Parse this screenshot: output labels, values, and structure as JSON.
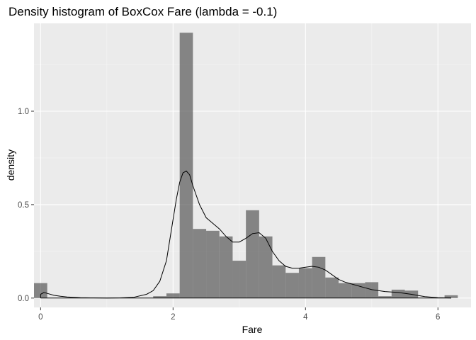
{
  "chart_data": {
    "type": "histogram",
    "title": "Density histogram of BoxCox Fare (lambda = -0.1)",
    "xlabel": "Fare",
    "ylabel": "density",
    "xlim": [
      -0.1,
      6.5
    ],
    "ylim": [
      -0.05,
      1.47
    ],
    "x_ticks": [
      0,
      2,
      4,
      6
    ],
    "x_tick_labels": [
      "0",
      "2",
      "4",
      "6"
    ],
    "y_ticks": [
      0.0,
      0.5,
      1.0
    ],
    "y_tick_labels": [
      "0.0",
      "0.5",
      "1.0"
    ],
    "grid": true,
    "theme": {
      "panel_background": "#ebebeb",
      "grid_major": "#ffffff",
      "grid_minor": "#f5f5f5",
      "bar_fill": "#595959",
      "bar_opacity": 0.7,
      "density_line": "#000000"
    },
    "bins": [
      {
        "x0": -0.1,
        "x1": 0.1,
        "density": 0.08
      },
      {
        "x0": 1.7,
        "x1": 1.9,
        "density": 0.01
      },
      {
        "x0": 1.9,
        "x1": 2.1,
        "density": 0.025
      },
      {
        "x0": 2.1,
        "x1": 2.3,
        "density": 1.42
      },
      {
        "x0": 2.3,
        "x1": 2.5,
        "density": 0.37
      },
      {
        "x0": 2.5,
        "x1": 2.7,
        "density": 0.36
      },
      {
        "x0": 2.7,
        "x1": 2.9,
        "density": 0.33
      },
      {
        "x0": 2.9,
        "x1": 3.1,
        "density": 0.2
      },
      {
        "x0": 3.1,
        "x1": 3.3,
        "density": 0.47
      },
      {
        "x0": 3.3,
        "x1": 3.5,
        "density": 0.33
      },
      {
        "x0": 3.5,
        "x1": 3.7,
        "density": 0.175
      },
      {
        "x0": 3.7,
        "x1": 3.9,
        "density": 0.135
      },
      {
        "x0": 3.9,
        "x1": 4.1,
        "density": 0.16
      },
      {
        "x0": 4.1,
        "x1": 4.3,
        "density": 0.22
      },
      {
        "x0": 4.3,
        "x1": 4.5,
        "density": 0.11
      },
      {
        "x0": 4.5,
        "x1": 4.7,
        "density": 0.08
      },
      {
        "x0": 4.7,
        "x1": 4.9,
        "density": 0.08
      },
      {
        "x0": 4.9,
        "x1": 5.1,
        "density": 0.085
      },
      {
        "x0": 5.1,
        "x1": 5.3,
        "density": 0.01
      },
      {
        "x0": 5.3,
        "x1": 5.5,
        "density": 0.045
      },
      {
        "x0": 5.5,
        "x1": 5.7,
        "density": 0.04
      },
      {
        "x0": 6.1,
        "x1": 6.3,
        "density": 0.015
      }
    ],
    "density_curve": {
      "x": [
        0.0,
        0.05,
        0.1,
        0.2,
        0.3,
        0.4,
        0.6,
        0.8,
        1.0,
        1.2,
        1.4,
        1.6,
        1.7,
        1.8,
        1.9,
        2.0,
        2.05,
        2.1,
        2.15,
        2.2,
        2.25,
        2.3,
        2.4,
        2.5,
        2.6,
        2.7,
        2.8,
        2.9,
        3.0,
        3.1,
        3.2,
        3.3,
        3.4,
        3.5,
        3.6,
        3.7,
        3.8,
        3.9,
        4.0,
        4.1,
        4.2,
        4.3,
        4.4,
        4.5,
        4.6,
        4.7,
        4.8,
        4.9,
        5.0,
        5.2,
        5.4,
        5.6,
        5.8,
        6.0,
        6.2
      ],
      "y": [
        0.02,
        0.03,
        0.025,
        0.015,
        0.01,
        0.006,
        0.002,
        0.001,
        0.0005,
        0.001,
        0.004,
        0.02,
        0.04,
        0.09,
        0.2,
        0.42,
        0.53,
        0.62,
        0.67,
        0.68,
        0.66,
        0.6,
        0.5,
        0.43,
        0.4,
        0.37,
        0.33,
        0.3,
        0.3,
        0.32,
        0.345,
        0.35,
        0.32,
        0.25,
        0.2,
        0.17,
        0.16,
        0.16,
        0.165,
        0.17,
        0.165,
        0.15,
        0.125,
        0.1,
        0.085,
        0.075,
        0.065,
        0.055,
        0.045,
        0.035,
        0.03,
        0.02,
        0.008,
        0.002,
        0.0005
      ]
    }
  }
}
